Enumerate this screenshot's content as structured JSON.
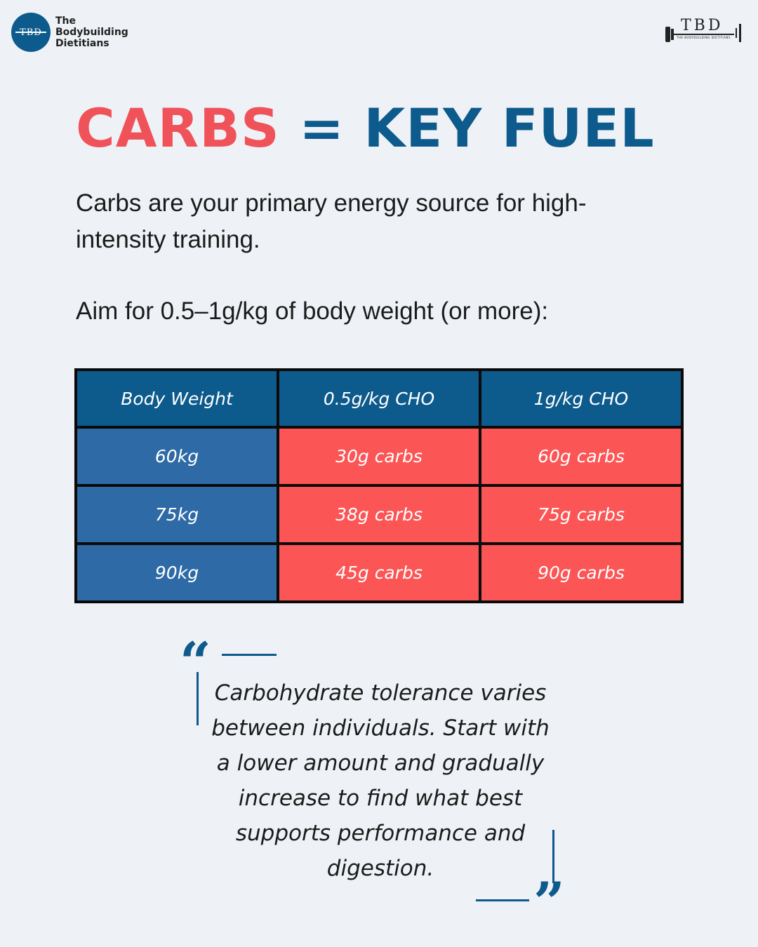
{
  "brand": {
    "monogram": "TBD",
    "name_lines": [
      "The",
      "Bodybuilding",
      "Dietitians"
    ],
    "right_logo_text": "TBD",
    "right_logo_sub": "THE BODYBUILDING DIETITIANS"
  },
  "colors": {
    "accent_red": "#f0525a",
    "brand_blue": "#0d5a8c",
    "row_blue": "#2d6aa6",
    "cell_red": "#fb5555"
  },
  "title": {
    "part1": "CARBS",
    "equals": "=",
    "part2": "KEY FUEL"
  },
  "intro": "Carbs are your primary energy source for high-intensity training.",
  "aim": "Aim for 0.5–1g/kg of body weight (or more):",
  "table": {
    "headers": [
      "Body Weight",
      "0.5g/kg CHO",
      "1g/kg CHO"
    ],
    "rows": [
      [
        "60kg",
        "30g carbs",
        "60g carbs"
      ],
      [
        "75kg",
        "38g carbs",
        "75g carbs"
      ],
      [
        "90kg",
        "45g carbs",
        "90g carbs"
      ]
    ]
  },
  "quote": {
    "open_mark": "“",
    "close_mark": "”",
    "text": "Carbohydrate tolerance varies between individuals. Start with a lower amount and gradually increase to find what best supports performance and digestion."
  }
}
